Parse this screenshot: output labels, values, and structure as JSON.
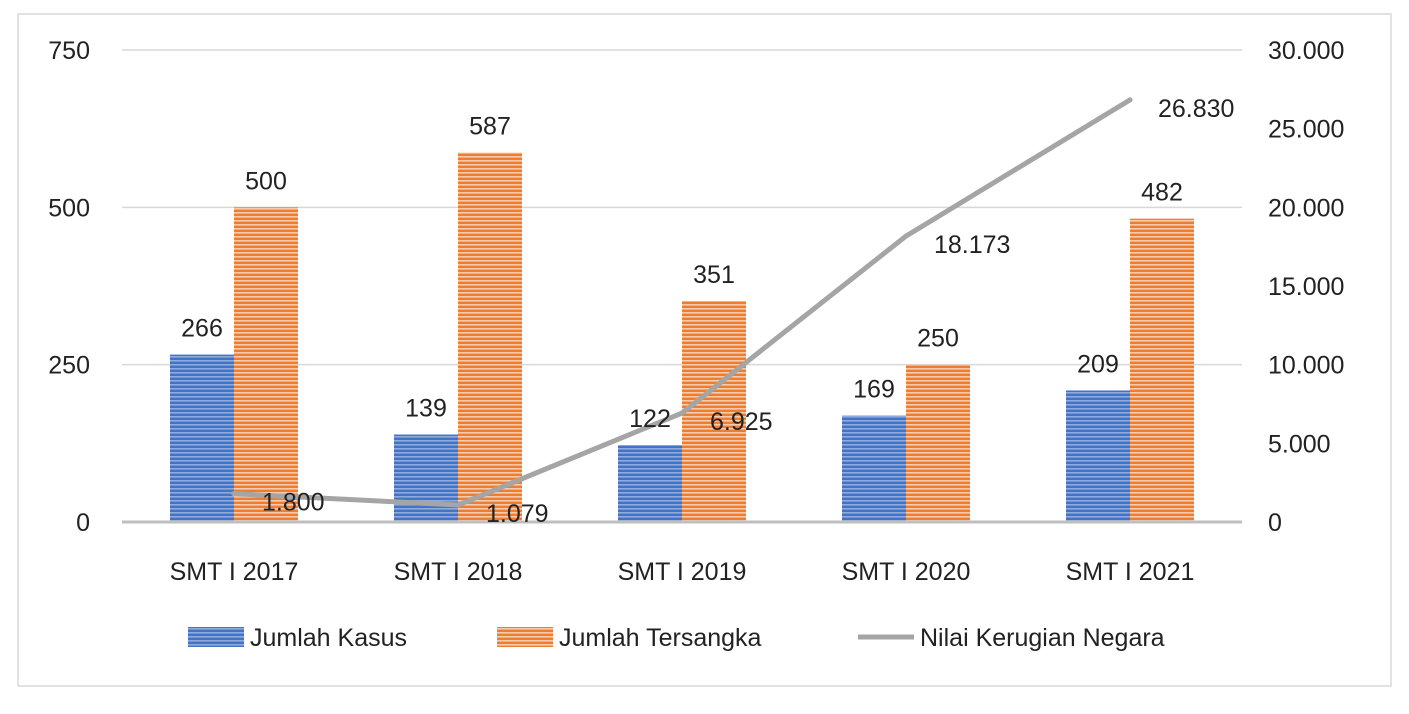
{
  "chart_data": {
    "type": "bar",
    "title": "",
    "categories": [
      "SMT I 2017",
      "SMT I 2018",
      "SMT I 2019",
      "SMT I 2020",
      "SMT I 2021"
    ],
    "series": [
      {
        "name": "Jumlah Kasus",
        "kind": "bar",
        "axis": "left",
        "color": "#4472C4",
        "values": [
          266,
          139,
          122,
          169,
          209
        ],
        "labels": [
          "266",
          "139",
          "122",
          "169",
          "209"
        ]
      },
      {
        "name": "Jumlah Tersangka",
        "kind": "bar",
        "axis": "left",
        "color": "#ED7D31",
        "values": [
          500,
          587,
          351,
          250,
          482
        ],
        "labels": [
          "500",
          "587",
          "351",
          "250",
          "482"
        ]
      },
      {
        "name": "Nilai Kerugian Negara",
        "kind": "line",
        "axis": "right",
        "color": "#A5A5A5",
        "values": [
          1800,
          1079,
          6925,
          18173,
          26830
        ],
        "labels": [
          "1.800",
          "1.079",
          "6.925",
          "18.173",
          "26.830"
        ]
      }
    ],
    "y_left": {
      "range": [
        0,
        750
      ],
      "ticks": [
        0,
        250,
        500,
        750
      ],
      "tick_labels": [
        "0",
        "250",
        "500",
        "750"
      ]
    },
    "y_right": {
      "range": [
        0,
        30000
      ],
      "ticks": [
        0,
        5000,
        10000,
        15000,
        20000,
        25000,
        30000
      ],
      "tick_labels": [
        "0",
        "5.000",
        "10.000",
        "15.000",
        "20.000",
        "25.000",
        "30.000"
      ]
    },
    "grid": true,
    "legend": "bottom"
  }
}
